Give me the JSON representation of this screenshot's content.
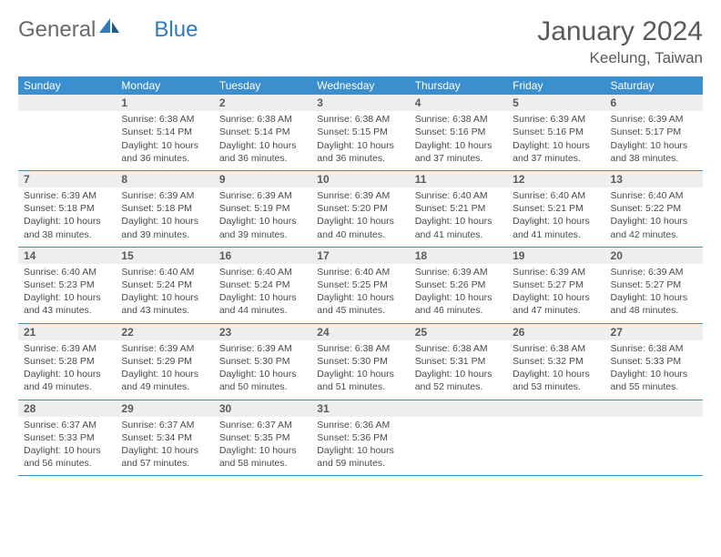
{
  "logo": {
    "text1": "General",
    "text2": "Blue"
  },
  "title": "January 2024",
  "subtitle": "Keelung, Taiwan",
  "colors": {
    "header_bg": "#3b8fce",
    "header_text": "#ffffff",
    "daynum_bg": "#eceeef",
    "text": "#4a4a4a",
    "week_border": "#3b8fce"
  },
  "days_of_week": [
    "Sunday",
    "Monday",
    "Tuesday",
    "Wednesday",
    "Thursday",
    "Friday",
    "Saturday"
  ],
  "weeks": [
    [
      {
        "n": "",
        "sr": "",
        "ss": "",
        "dl1": "",
        "dl2": ""
      },
      {
        "n": "1",
        "sr": "Sunrise: 6:38 AM",
        "ss": "Sunset: 5:14 PM",
        "dl1": "Daylight: 10 hours",
        "dl2": "and 36 minutes."
      },
      {
        "n": "2",
        "sr": "Sunrise: 6:38 AM",
        "ss": "Sunset: 5:14 PM",
        "dl1": "Daylight: 10 hours",
        "dl2": "and 36 minutes."
      },
      {
        "n": "3",
        "sr": "Sunrise: 6:38 AM",
        "ss": "Sunset: 5:15 PM",
        "dl1": "Daylight: 10 hours",
        "dl2": "and 36 minutes."
      },
      {
        "n": "4",
        "sr": "Sunrise: 6:38 AM",
        "ss": "Sunset: 5:16 PM",
        "dl1": "Daylight: 10 hours",
        "dl2": "and 37 minutes."
      },
      {
        "n": "5",
        "sr": "Sunrise: 6:39 AM",
        "ss": "Sunset: 5:16 PM",
        "dl1": "Daylight: 10 hours",
        "dl2": "and 37 minutes."
      },
      {
        "n": "6",
        "sr": "Sunrise: 6:39 AM",
        "ss": "Sunset: 5:17 PM",
        "dl1": "Daylight: 10 hours",
        "dl2": "and 38 minutes."
      }
    ],
    [
      {
        "n": "7",
        "sr": "Sunrise: 6:39 AM",
        "ss": "Sunset: 5:18 PM",
        "dl1": "Daylight: 10 hours",
        "dl2": "and 38 minutes."
      },
      {
        "n": "8",
        "sr": "Sunrise: 6:39 AM",
        "ss": "Sunset: 5:18 PM",
        "dl1": "Daylight: 10 hours",
        "dl2": "and 39 minutes."
      },
      {
        "n": "9",
        "sr": "Sunrise: 6:39 AM",
        "ss": "Sunset: 5:19 PM",
        "dl1": "Daylight: 10 hours",
        "dl2": "and 39 minutes."
      },
      {
        "n": "10",
        "sr": "Sunrise: 6:39 AM",
        "ss": "Sunset: 5:20 PM",
        "dl1": "Daylight: 10 hours",
        "dl2": "and 40 minutes."
      },
      {
        "n": "11",
        "sr": "Sunrise: 6:40 AM",
        "ss": "Sunset: 5:21 PM",
        "dl1": "Daylight: 10 hours",
        "dl2": "and 41 minutes."
      },
      {
        "n": "12",
        "sr": "Sunrise: 6:40 AM",
        "ss": "Sunset: 5:21 PM",
        "dl1": "Daylight: 10 hours",
        "dl2": "and 41 minutes."
      },
      {
        "n": "13",
        "sr": "Sunrise: 6:40 AM",
        "ss": "Sunset: 5:22 PM",
        "dl1": "Daylight: 10 hours",
        "dl2": "and 42 minutes."
      }
    ],
    [
      {
        "n": "14",
        "sr": "Sunrise: 6:40 AM",
        "ss": "Sunset: 5:23 PM",
        "dl1": "Daylight: 10 hours",
        "dl2": "and 43 minutes."
      },
      {
        "n": "15",
        "sr": "Sunrise: 6:40 AM",
        "ss": "Sunset: 5:24 PM",
        "dl1": "Daylight: 10 hours",
        "dl2": "and 43 minutes."
      },
      {
        "n": "16",
        "sr": "Sunrise: 6:40 AM",
        "ss": "Sunset: 5:24 PM",
        "dl1": "Daylight: 10 hours",
        "dl2": "and 44 minutes."
      },
      {
        "n": "17",
        "sr": "Sunrise: 6:40 AM",
        "ss": "Sunset: 5:25 PM",
        "dl1": "Daylight: 10 hours",
        "dl2": "and 45 minutes."
      },
      {
        "n": "18",
        "sr": "Sunrise: 6:39 AM",
        "ss": "Sunset: 5:26 PM",
        "dl1": "Daylight: 10 hours",
        "dl2": "and 46 minutes."
      },
      {
        "n": "19",
        "sr": "Sunrise: 6:39 AM",
        "ss": "Sunset: 5:27 PM",
        "dl1": "Daylight: 10 hours",
        "dl2": "and 47 minutes."
      },
      {
        "n": "20",
        "sr": "Sunrise: 6:39 AM",
        "ss": "Sunset: 5:27 PM",
        "dl1": "Daylight: 10 hours",
        "dl2": "and 48 minutes."
      }
    ],
    [
      {
        "n": "21",
        "sr": "Sunrise: 6:39 AM",
        "ss": "Sunset: 5:28 PM",
        "dl1": "Daylight: 10 hours",
        "dl2": "and 49 minutes."
      },
      {
        "n": "22",
        "sr": "Sunrise: 6:39 AM",
        "ss": "Sunset: 5:29 PM",
        "dl1": "Daylight: 10 hours",
        "dl2": "and 49 minutes."
      },
      {
        "n": "23",
        "sr": "Sunrise: 6:39 AM",
        "ss": "Sunset: 5:30 PM",
        "dl1": "Daylight: 10 hours",
        "dl2": "and 50 minutes."
      },
      {
        "n": "24",
        "sr": "Sunrise: 6:38 AM",
        "ss": "Sunset: 5:30 PM",
        "dl1": "Daylight: 10 hours",
        "dl2": "and 51 minutes."
      },
      {
        "n": "25",
        "sr": "Sunrise: 6:38 AM",
        "ss": "Sunset: 5:31 PM",
        "dl1": "Daylight: 10 hours",
        "dl2": "and 52 minutes."
      },
      {
        "n": "26",
        "sr": "Sunrise: 6:38 AM",
        "ss": "Sunset: 5:32 PM",
        "dl1": "Daylight: 10 hours",
        "dl2": "and 53 minutes."
      },
      {
        "n": "27",
        "sr": "Sunrise: 6:38 AM",
        "ss": "Sunset: 5:33 PM",
        "dl1": "Daylight: 10 hours",
        "dl2": "and 55 minutes."
      }
    ],
    [
      {
        "n": "28",
        "sr": "Sunrise: 6:37 AM",
        "ss": "Sunset: 5:33 PM",
        "dl1": "Daylight: 10 hours",
        "dl2": "and 56 minutes."
      },
      {
        "n": "29",
        "sr": "Sunrise: 6:37 AM",
        "ss": "Sunset: 5:34 PM",
        "dl1": "Daylight: 10 hours",
        "dl2": "and 57 minutes."
      },
      {
        "n": "30",
        "sr": "Sunrise: 6:37 AM",
        "ss": "Sunset: 5:35 PM",
        "dl1": "Daylight: 10 hours",
        "dl2": "and 58 minutes."
      },
      {
        "n": "31",
        "sr": "Sunrise: 6:36 AM",
        "ss": "Sunset: 5:36 PM",
        "dl1": "Daylight: 10 hours",
        "dl2": "and 59 minutes."
      },
      {
        "n": "",
        "sr": "",
        "ss": "",
        "dl1": "",
        "dl2": ""
      },
      {
        "n": "",
        "sr": "",
        "ss": "",
        "dl1": "",
        "dl2": ""
      },
      {
        "n": "",
        "sr": "",
        "ss": "",
        "dl1": "",
        "dl2": ""
      }
    ]
  ]
}
